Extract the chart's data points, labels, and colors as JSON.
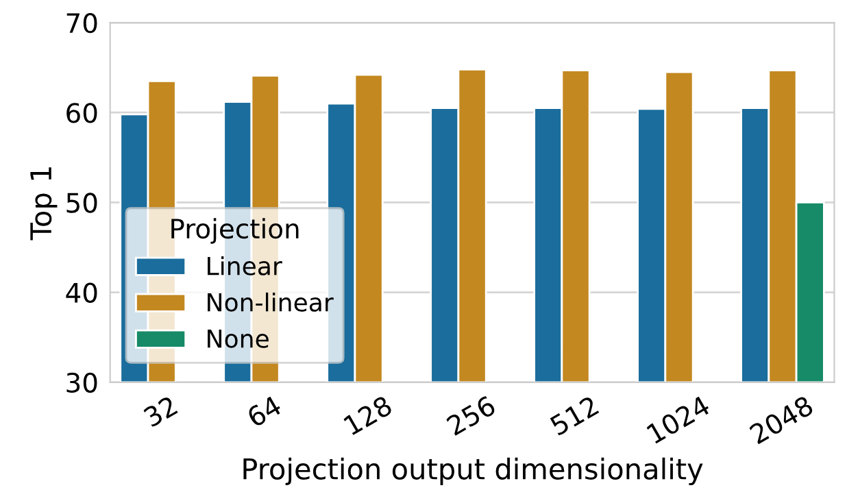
{
  "chart_data": {
    "type": "bar",
    "xlabel": "Projection output dimensionality",
    "ylabel": "Top 1",
    "legend_title": "Projection",
    "categories": [
      "32",
      "64",
      "128",
      "256",
      "512",
      "1024",
      "2048"
    ],
    "series": [
      {
        "name": "Linear",
        "color": "#1a6d9c",
        "values": [
          59.8,
          61.2,
          61.0,
          60.5,
          60.5,
          60.4,
          60.5
        ]
      },
      {
        "name": "Non-linear",
        "color": "#c38820",
        "values": [
          63.5,
          64.1,
          64.2,
          64.8,
          64.7,
          64.5,
          64.7
        ]
      },
      {
        "name": "None",
        "color": "#178a68",
        "values": [
          null,
          null,
          null,
          null,
          null,
          null,
          50.0
        ]
      }
    ],
    "ylim": [
      30,
      70
    ],
    "yticks": [
      30,
      40,
      50,
      60,
      70
    ],
    "grid": "y",
    "legend": "bottom left"
  }
}
